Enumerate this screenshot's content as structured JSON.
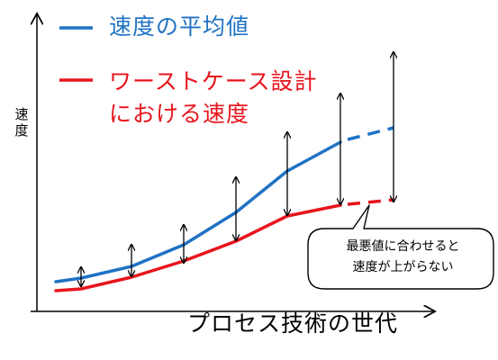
{
  "legend": {
    "average": {
      "label": "速度の平均値",
      "color": "#1f72c4"
    },
    "worst_case": {
      "label_line1": "ワーストケース設計",
      "label_line2": "における速度",
      "color": "#e8141c"
    }
  },
  "axes": {
    "y_label": "速度",
    "x_label": "プロセス技術の世代"
  },
  "callout": {
    "line1": "最悪値に合わせると",
    "line2": "速度が上がらない"
  }
}
